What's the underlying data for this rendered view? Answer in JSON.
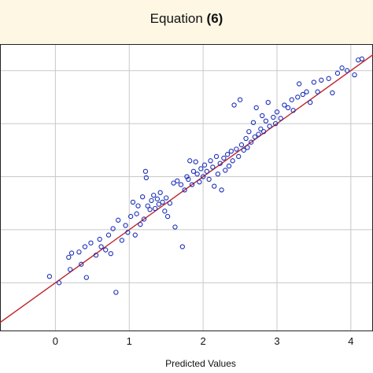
{
  "chart_data": {
    "type": "scatter",
    "title": "Equation (6)",
    "title_parts": {
      "main": "Equation",
      "bold": "(6)"
    },
    "xlabel": "Predicted Values",
    "ylabel": "",
    "xlim": [
      -0.75,
      4.3
    ],
    "ylim": [
      -0.9,
      4.5
    ],
    "x_ticks": [
      0,
      1,
      2,
      3,
      4
    ],
    "x_tick_labels": [
      "0",
      "1",
      "2",
      "3",
      "4"
    ],
    "y_gridlines": [
      0,
      1,
      2,
      3,
      4
    ],
    "grid": true,
    "colors": {
      "points": "#1a2fb8",
      "fit_line": "#c0242a",
      "grid": "#c8c8c8",
      "title_bg": "#fdf7e4"
    },
    "fit_line": {
      "x": [
        -0.75,
        4.3
      ],
      "y": [
        -0.75,
        4.3
      ]
    },
    "points": [
      {
        "x": -0.08,
        "y": 0.12
      },
      {
        "x": 0.05,
        "y": 0.0
      },
      {
        "x": 0.18,
        "y": 0.48
      },
      {
        "x": 0.22,
        "y": 0.56
      },
      {
        "x": 0.2,
        "y": 0.25
      },
      {
        "x": 0.32,
        "y": 0.58
      },
      {
        "x": 0.35,
        "y": 0.35
      },
      {
        "x": 0.4,
        "y": 0.68
      },
      {
        "x": 0.42,
        "y": 0.1
      },
      {
        "x": 0.48,
        "y": 0.75
      },
      {
        "x": 0.55,
        "y": 0.52
      },
      {
        "x": 0.6,
        "y": 0.82
      },
      {
        "x": 0.62,
        "y": 0.68
      },
      {
        "x": 0.68,
        "y": 0.62
      },
      {
        "x": 0.72,
        "y": 0.9
      },
      {
        "x": 0.75,
        "y": 0.55
      },
      {
        "x": 0.78,
        "y": 1.02
      },
      {
        "x": 0.82,
        "y": -0.18
      },
      {
        "x": 0.85,
        "y": 1.18
      },
      {
        "x": 0.9,
        "y": 0.8
      },
      {
        "x": 0.95,
        "y": 1.08
      },
      {
        "x": 0.98,
        "y": 0.95
      },
      {
        "x": 1.02,
        "y": 1.25
      },
      {
        "x": 1.05,
        "y": 1.52
      },
      {
        "x": 1.08,
        "y": 0.9
      },
      {
        "x": 1.1,
        "y": 1.3
      },
      {
        "x": 1.12,
        "y": 1.45
      },
      {
        "x": 1.15,
        "y": 1.1
      },
      {
        "x": 1.18,
        "y": 1.62
      },
      {
        "x": 1.2,
        "y": 1.2
      },
      {
        "x": 1.22,
        "y": 2.1
      },
      {
        "x": 1.23,
        "y": 1.98
      },
      {
        "x": 1.25,
        "y": 1.45
      },
      {
        "x": 1.28,
        "y": 1.38
      },
      {
        "x": 1.3,
        "y": 1.55
      },
      {
        "x": 1.33,
        "y": 1.65
      },
      {
        "x": 1.35,
        "y": 1.4
      },
      {
        "x": 1.38,
        "y": 1.58
      },
      {
        "x": 1.4,
        "y": 1.48
      },
      {
        "x": 1.42,
        "y": 1.7
      },
      {
        "x": 1.45,
        "y": 1.52
      },
      {
        "x": 1.48,
        "y": 1.35
      },
      {
        "x": 1.5,
        "y": 1.6
      },
      {
        "x": 1.52,
        "y": 1.25
      },
      {
        "x": 1.55,
        "y": 1.5
      },
      {
        "x": 1.6,
        "y": 1.88
      },
      {
        "x": 1.62,
        "y": 1.05
      },
      {
        "x": 1.65,
        "y": 1.92
      },
      {
        "x": 1.7,
        "y": 1.85
      },
      {
        "x": 1.72,
        "y": 0.68
      },
      {
        "x": 1.75,
        "y": 1.75
      },
      {
        "x": 1.78,
        "y": 2.0
      },
      {
        "x": 1.8,
        "y": 1.95
      },
      {
        "x": 1.82,
        "y": 2.3
      },
      {
        "x": 1.85,
        "y": 1.85
      },
      {
        "x": 1.87,
        "y": 2.1
      },
      {
        "x": 1.9,
        "y": 2.28
      },
      {
        "x": 1.92,
        "y": 2.05
      },
      {
        "x": 1.95,
        "y": 1.9
      },
      {
        "x": 1.97,
        "y": 2.15
      },
      {
        "x": 2.0,
        "y": 2.0
      },
      {
        "x": 2.02,
        "y": 2.22
      },
      {
        "x": 2.05,
        "y": 2.1
      },
      {
        "x": 2.08,
        "y": 1.95
      },
      {
        "x": 2.1,
        "y": 2.3
      },
      {
        "x": 2.13,
        "y": 2.18
      },
      {
        "x": 2.15,
        "y": 1.82
      },
      {
        "x": 2.18,
        "y": 2.38
      },
      {
        "x": 2.2,
        "y": 2.05
      },
      {
        "x": 2.23,
        "y": 2.25
      },
      {
        "x": 2.25,
        "y": 1.75
      },
      {
        "x": 2.28,
        "y": 2.35
      },
      {
        "x": 2.3,
        "y": 2.12
      },
      {
        "x": 2.33,
        "y": 2.42
      },
      {
        "x": 2.35,
        "y": 2.2
      },
      {
        "x": 2.38,
        "y": 2.48
      },
      {
        "x": 2.4,
        "y": 2.3
      },
      {
        "x": 2.42,
        "y": 3.35
      },
      {
        "x": 2.45,
        "y": 2.52
      },
      {
        "x": 2.48,
        "y": 2.38
      },
      {
        "x": 2.5,
        "y": 3.45
      },
      {
        "x": 2.52,
        "y": 2.6
      },
      {
        "x": 2.55,
        "y": 2.5
      },
      {
        "x": 2.58,
        "y": 2.72
      },
      {
        "x": 2.6,
        "y": 2.55
      },
      {
        "x": 2.62,
        "y": 2.85
      },
      {
        "x": 2.65,
        "y": 2.65
      },
      {
        "x": 2.68,
        "y": 3.02
      },
      {
        "x": 2.7,
        "y": 2.75
      },
      {
        "x": 2.72,
        "y": 3.3
      },
      {
        "x": 2.75,
        "y": 2.8
      },
      {
        "x": 2.78,
        "y": 2.9
      },
      {
        "x": 2.8,
        "y": 3.15
      },
      {
        "x": 2.82,
        "y": 2.85
      },
      {
        "x": 2.85,
        "y": 3.05
      },
      {
        "x": 2.88,
        "y": 3.4
      },
      {
        "x": 2.9,
        "y": 2.95
      },
      {
        "x": 2.95,
        "y": 3.12
      },
      {
        "x": 2.98,
        "y": 3.0
      },
      {
        "x": 3.0,
        "y": 3.22
      },
      {
        "x": 3.05,
        "y": 3.1
      },
      {
        "x": 3.1,
        "y": 3.35
      },
      {
        "x": 3.15,
        "y": 3.3
      },
      {
        "x": 3.2,
        "y": 3.45
      },
      {
        "x": 3.22,
        "y": 3.25
      },
      {
        "x": 3.28,
        "y": 3.5
      },
      {
        "x": 3.3,
        "y": 3.75
      },
      {
        "x": 3.35,
        "y": 3.55
      },
      {
        "x": 3.4,
        "y": 3.6
      },
      {
        "x": 3.45,
        "y": 3.4
      },
      {
        "x": 3.5,
        "y": 3.78
      },
      {
        "x": 3.55,
        "y": 3.6
      },
      {
        "x": 3.6,
        "y": 3.82
      },
      {
        "x": 3.7,
        "y": 3.85
      },
      {
        "x": 3.75,
        "y": 3.58
      },
      {
        "x": 3.82,
        "y": 3.95
      },
      {
        "x": 3.88,
        "y": 4.05
      },
      {
        "x": 3.95,
        "y": 4.0
      },
      {
        "x": 4.05,
        "y": 3.92
      },
      {
        "x": 4.1,
        "y": 4.2
      },
      {
        "x": 4.15,
        "y": 4.22
      }
    ]
  }
}
